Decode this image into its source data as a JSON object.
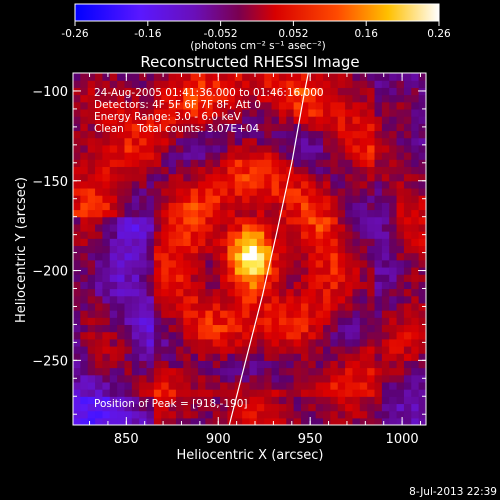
{
  "chart_data": {
    "type": "heatmap",
    "title": "Reconstructed RHESSI Image",
    "xlabel": "Heliocentric X (arcsec)",
    "ylabel": "Heliocentric Y (arcsec)",
    "xlim": [
      821,
      1013
    ],
    "ylim": [
      -286,
      -90
    ],
    "x_ticks": [
      850,
      900,
      950,
      1000
    ],
    "y_ticks": [
      -100,
      -150,
      -200,
      -250
    ],
    "colorbar": {
      "min": -0.26,
      "max": 0.26,
      "ticks": [
        "-0.26",
        "-0.16",
        "-0.052",
        "0.052",
        "0.16",
        "0.26"
      ],
      "unit_label": "(photons cm⁻² s⁻¹ asec⁻²)",
      "colors": [
        "#0000ff",
        "#7a1fff",
        "#4b0082",
        "#ff0000",
        "#ffd200",
        "#ffffff"
      ]
    },
    "annotations": {
      "time_range": "24-Aug-2005 01:41:36.000 to 01:46:16.000",
      "detectors": "Detectors: 4F 5F 6F 7F 8F, Att 0",
      "energy": "Energy Range: 3.0 - 6.0 keV",
      "clean": "Clean    Total counts: 3.07E+04",
      "peak": "Position of Peak = [918,-190]"
    },
    "peak": {
      "x": 918,
      "y": -190,
      "value": 0.26
    },
    "limb_line": [
      [
        906,
        -286
      ],
      [
        915,
        -250
      ],
      [
        924,
        -214
      ],
      [
        932,
        -178
      ],
      [
        940,
        -140
      ],
      [
        947,
        -100
      ],
      [
        949,
        -90
      ]
    ]
  },
  "footer": {
    "date": "8-Jul-2013 22:39"
  }
}
